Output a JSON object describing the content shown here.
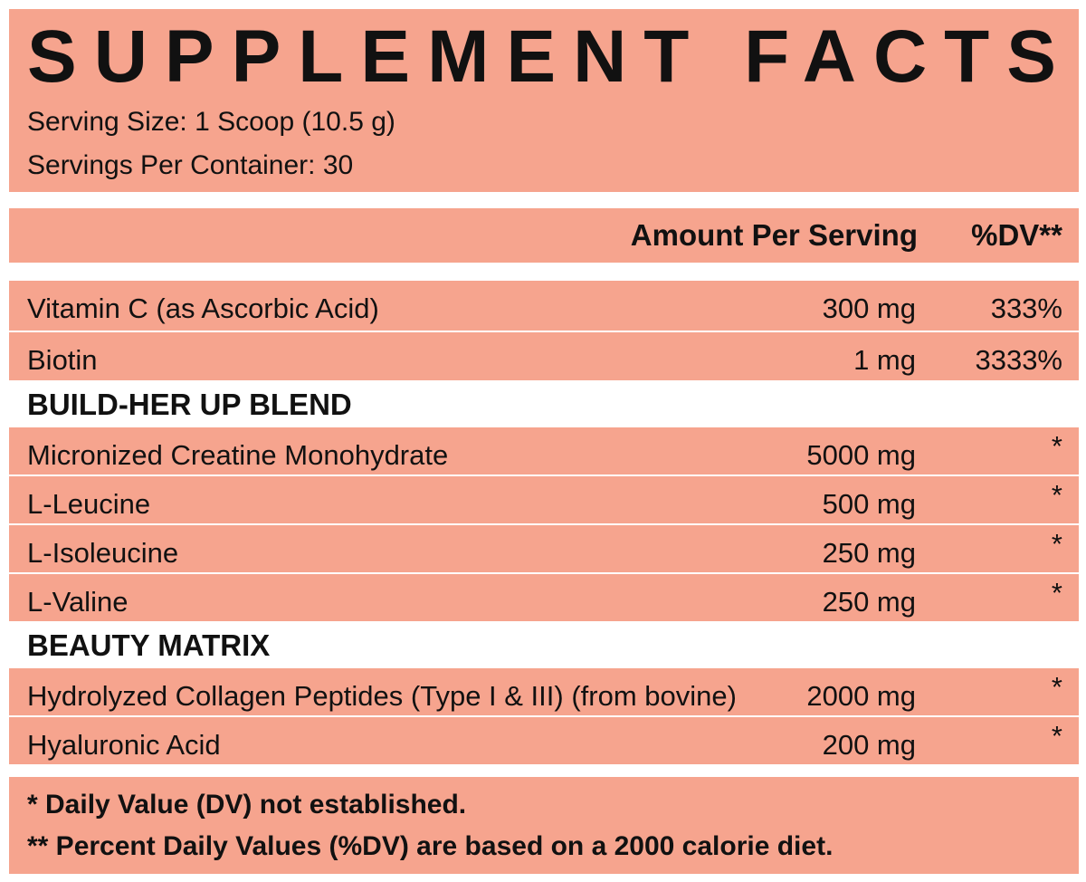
{
  "header": {
    "title": "SUPPLEMENT FACTS",
    "serving_size": "Serving Size: 1 Scoop (10.5 g)",
    "servings_per_container": "Servings Per Container: 30"
  },
  "table": {
    "columns": [
      "Amount Per Serving",
      "%DV**"
    ],
    "rows": [
      {
        "name": "Vitamin C (as Ascorbic Acid)",
        "amount": "300 mg",
        "dv": "333%"
      },
      {
        "name": "Biotin",
        "amount": "1 mg",
        "dv": "3333%"
      },
      {
        "section": "BUILD-HER UP BLEND"
      },
      {
        "name": "Micronized Creatine Monohydrate",
        "amount": "5000 mg",
        "dv": "*"
      },
      {
        "name": "L-Leucine",
        "amount": "500 mg",
        "dv": "*"
      },
      {
        "name": "L-Isoleucine",
        "amount": "250 mg",
        "dv": "*"
      },
      {
        "name": "L-Valine",
        "amount": "250 mg",
        "dv": "*"
      },
      {
        "section": "BEAUTY MATRIX"
      },
      {
        "name": "Hydrolyzed Collagen Peptides (Type I & III) (from bovine)",
        "amount": "2000 mg",
        "dv": "*"
      },
      {
        "name": "Hyaluronic Acid",
        "amount": "200 mg",
        "dv": "*"
      }
    ]
  },
  "footnotes": [
    "* Daily Value (DV) not established.",
    "** Percent Daily Values (%DV) are based on a 2000 calorie diet."
  ]
}
